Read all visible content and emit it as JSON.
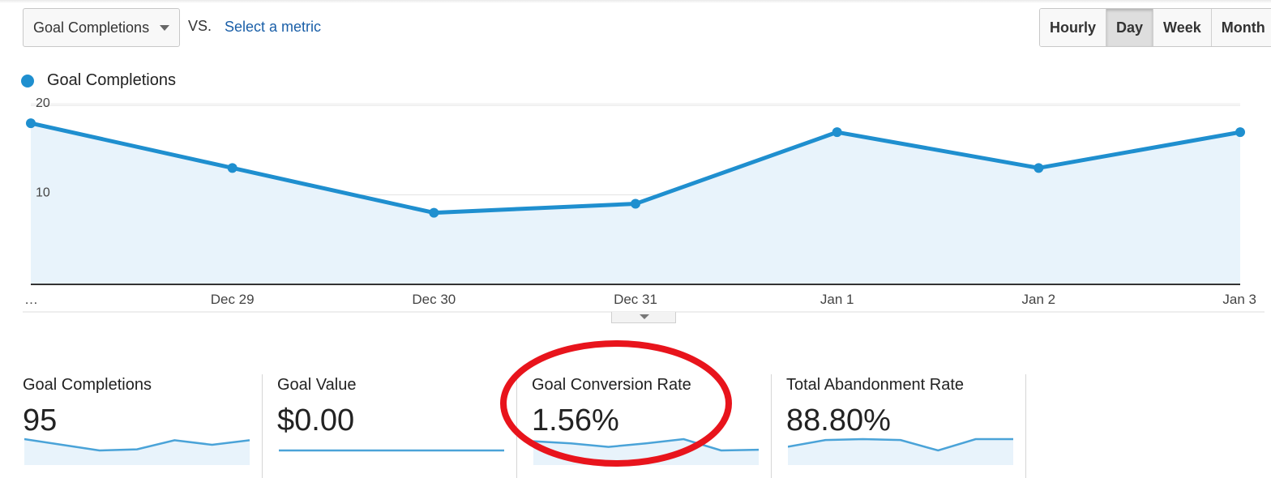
{
  "toolbar": {
    "metric_select": "Goal Completions",
    "vs_label": "VS.",
    "select_metric_link": "Select a metric",
    "time_ranges": [
      "Hourly",
      "Day",
      "Week",
      "Month"
    ],
    "active_range": "Day"
  },
  "colors": {
    "series": "#1f8fcf",
    "fill": "#e8f3fb",
    "highlight": "#e8141c"
  },
  "chart_data": {
    "type": "area",
    "legend": "Goal Completions",
    "x_labels": [
      "…",
      "Dec 29",
      "Dec 30",
      "Dec 31",
      "Jan 1",
      "Jan 2",
      "Jan 3"
    ],
    "y_ticks": [
      "20",
      "10"
    ],
    "ylim": [
      0,
      20
    ],
    "series": [
      {
        "name": "Goal Completions",
        "values": [
          18,
          13,
          8,
          9,
          17,
          13,
          17
        ]
      }
    ]
  },
  "scorecards": [
    {
      "label": "Goal Completions",
      "value": "95",
      "spark": [
        18,
        13,
        8,
        9,
        17,
        13,
        17
      ]
    },
    {
      "label": "Goal Value",
      "value": "$0.00",
      "spark": [
        0,
        0,
        0,
        0,
        0,
        0,
        0
      ]
    },
    {
      "label": "Goal Conversion Rate",
      "value": "1.56%",
      "spark": [
        1.9,
        1.6,
        1.1,
        1.6,
        2.2,
        0.6,
        0.7
      ]
    },
    {
      "label": "Total Abandonment Rate",
      "value": "88.80%",
      "spark": [
        88.2,
        88.9,
        89.0,
        88.9,
        87.8,
        89.0,
        89.0
      ]
    }
  ]
}
